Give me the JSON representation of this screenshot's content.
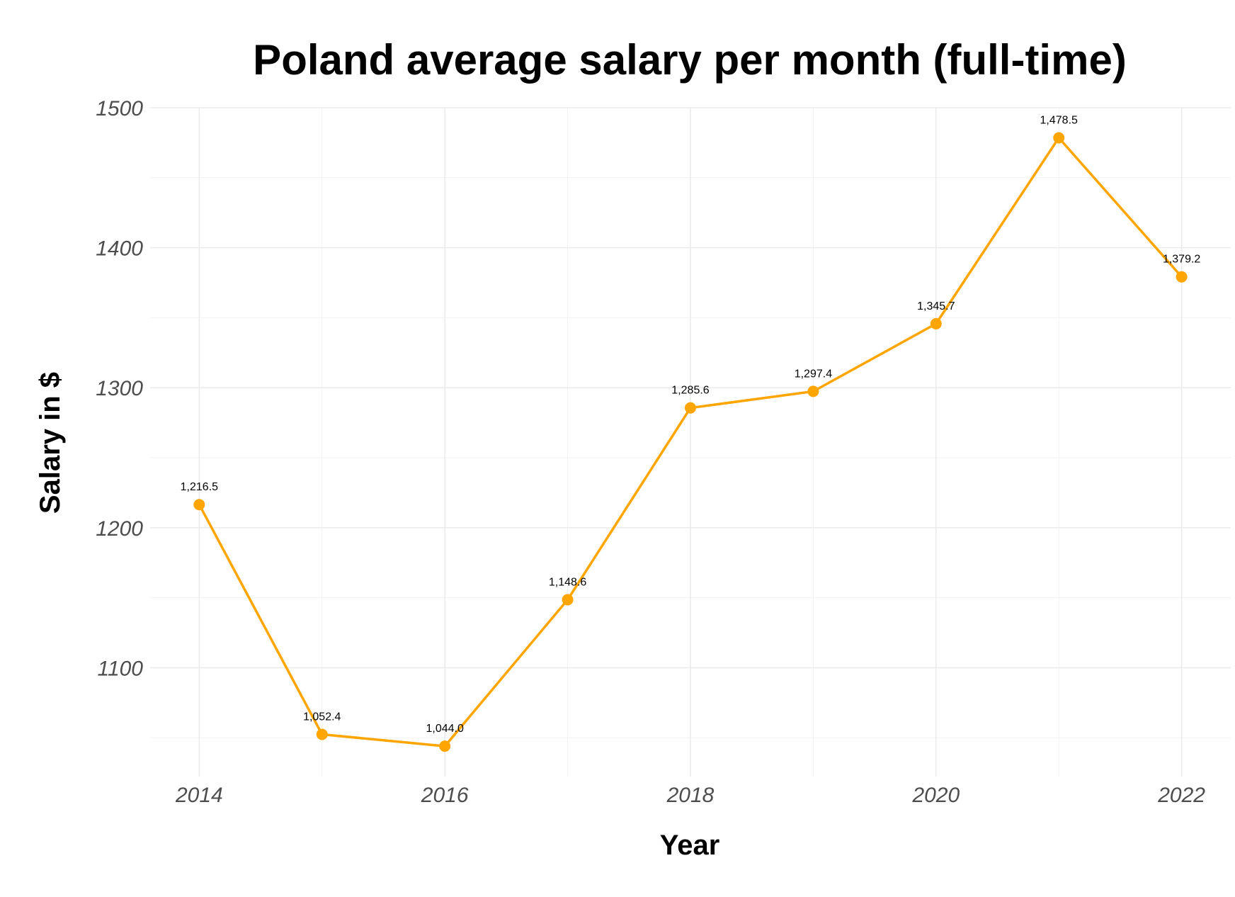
{
  "chart_data": {
    "type": "line",
    "title": "Poland average salary per month (full-time)",
    "xlabel": "Year",
    "ylabel": "Salary in $",
    "x": [
      2014,
      2015,
      2016,
      2017,
      2018,
      2019,
      2020,
      2021,
      2022
    ],
    "series": [
      {
        "values": [
          1216.5,
          1052.4,
          1044.0,
          1148.6,
          1285.6,
          1297.4,
          1345.7,
          1478.5,
          1379.2
        ]
      }
    ],
    "data_labels": [
      "1,216.5",
      "1,052.4",
      "1,044.0",
      "1,148.6",
      "1,285.6",
      "1,297.4",
      "1,345.7",
      "1,478.5",
      "1,379.2"
    ],
    "xticks": [
      2014,
      2016,
      2018,
      2020,
      2022
    ],
    "yticks": [
      1100,
      1200,
      1300,
      1400,
      1500
    ],
    "xlim": [
      2013.6,
      2022.4
    ],
    "ylim": [
      1022.3,
      1500
    ],
    "grid": true,
    "line_color": "#FFA500"
  }
}
